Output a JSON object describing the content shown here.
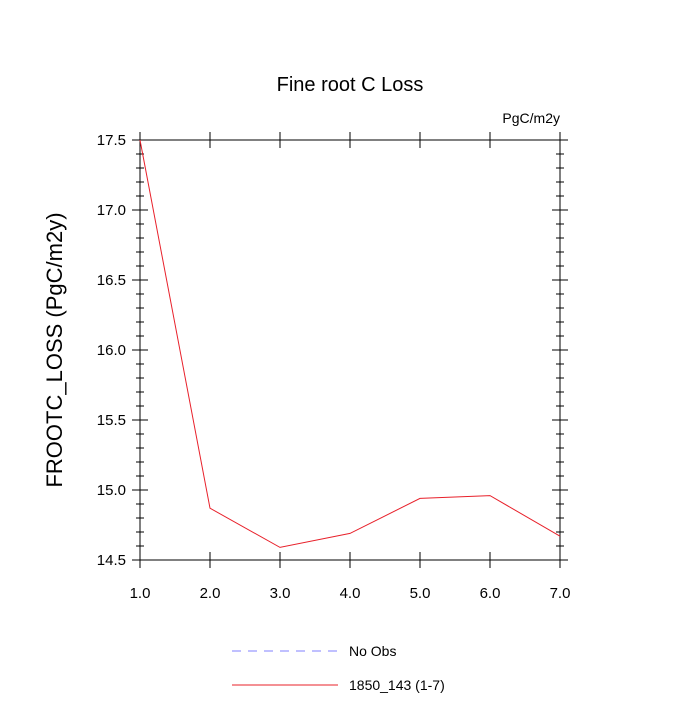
{
  "chart_data": {
    "type": "line",
    "title": "Fine root C Loss",
    "units": "PgC/m2y",
    "xlabel": "",
    "ylabel": "FROOTC_LOSS  (PgC/m2y)",
    "xlim": [
      1.0,
      7.0
    ],
    "ylim": [
      14.5,
      17.5
    ],
    "x_ticks": [
      1.0,
      2.0,
      3.0,
      4.0,
      5.0,
      6.0,
      7.0
    ],
    "x_tick_labels": [
      "1.0",
      "2.0",
      "3.0",
      "4.0",
      "5.0",
      "6.0",
      "7.0"
    ],
    "y_ticks": [
      14.5,
      15.0,
      15.5,
      16.0,
      16.5,
      17.0,
      17.5
    ],
    "y_tick_labels": [
      "14.5",
      "15.0",
      "15.5",
      "16.0",
      "16.5",
      "17.0",
      "17.5"
    ],
    "grid": false,
    "legend_position": "bottom",
    "series": [
      {
        "name": "1850_143 (1-7)",
        "color": "#e8202a",
        "line_style": "solid",
        "x": [
          1,
          2,
          3,
          4,
          5,
          6,
          7
        ],
        "values": [
          17.5,
          14.87,
          14.59,
          14.69,
          14.94,
          14.96,
          14.67
        ]
      }
    ],
    "legend": [
      {
        "label": "No Obs",
        "color": "#8080ff",
        "line_style": "dashed"
      },
      {
        "label": "1850_143 (1-7)",
        "color": "#e8202a",
        "line_style": "solid"
      }
    ]
  }
}
